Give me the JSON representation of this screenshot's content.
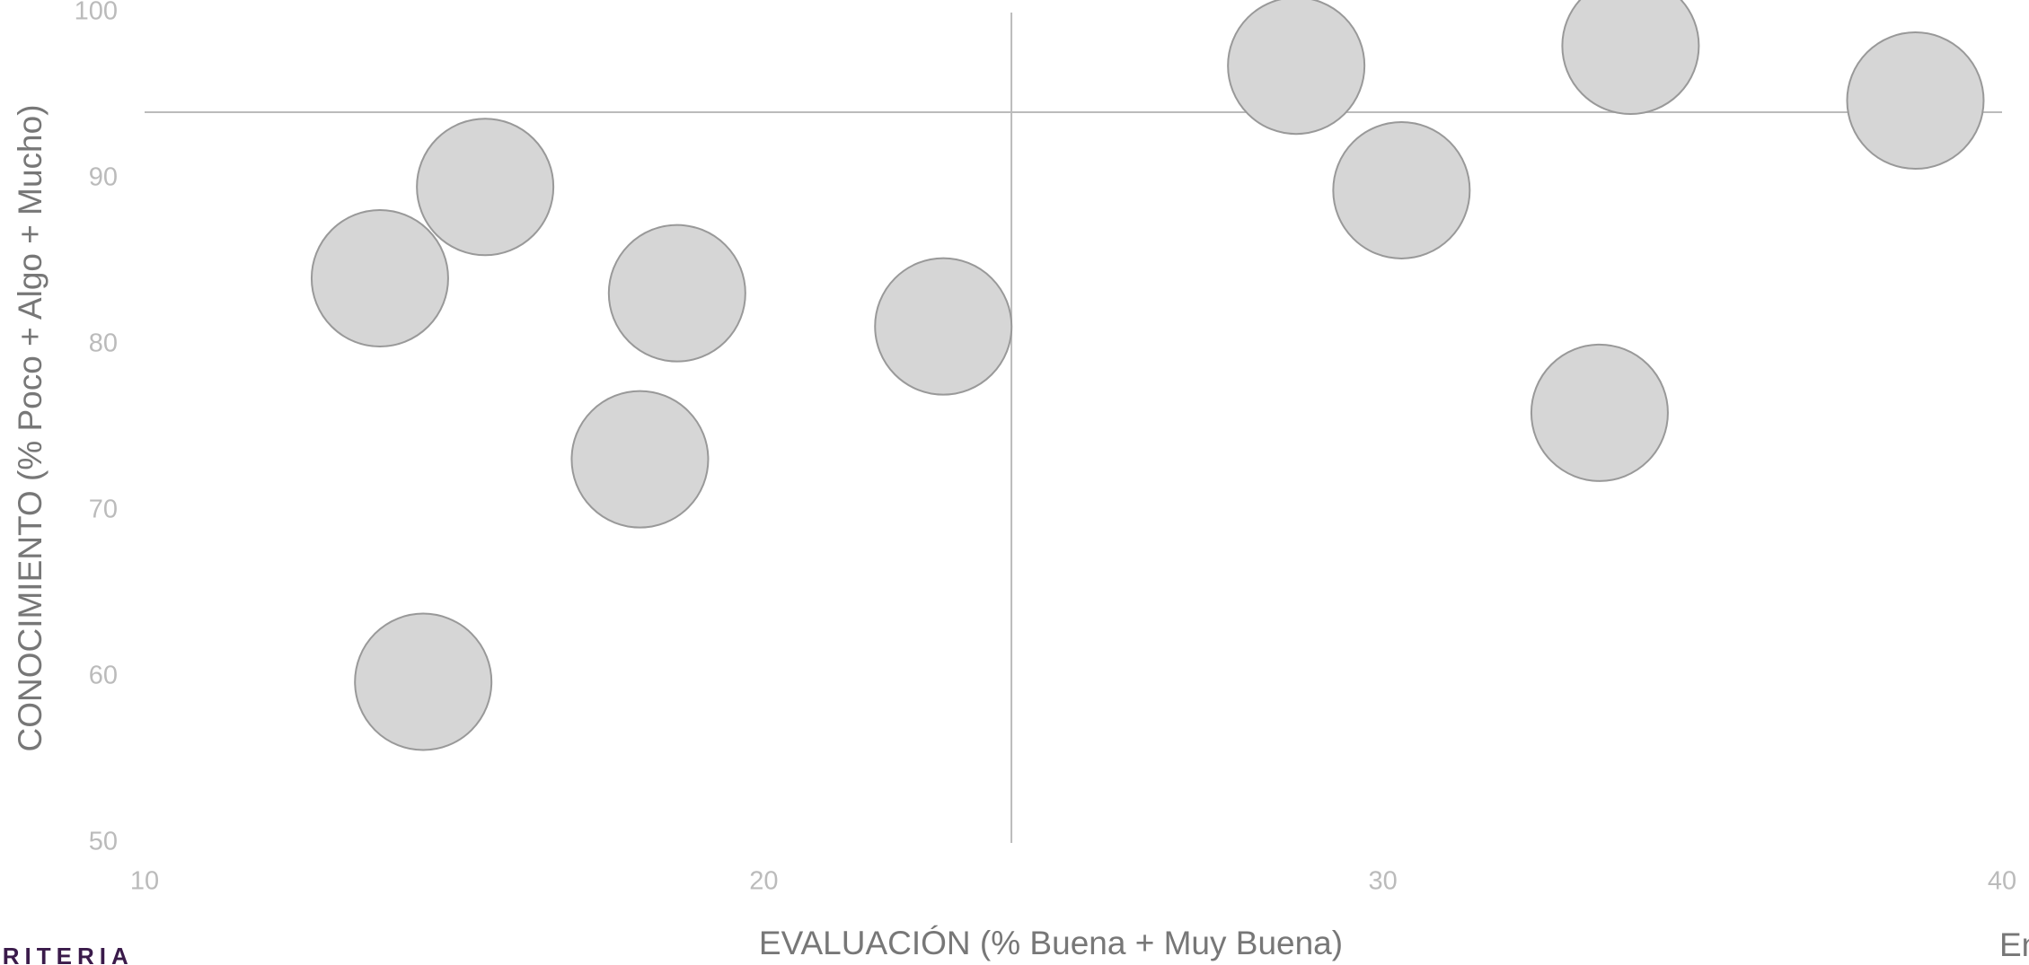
{
  "chart_data": {
    "type": "scatter",
    "xlabel": "EVALUACIÓN (% Buena + Muy Buena)",
    "ylabel": "CONOCIMIENTO (% Poco + Algo + Mucho)",
    "x": [
      28.6,
      34.0,
      38.6,
      15.5,
      30.3,
      13.8,
      18.6,
      22.9,
      33.5,
      18.0,
      14.5
    ],
    "values": [
      96.8,
      98.0,
      94.7,
      89.5,
      89.3,
      84.0,
      83.1,
      81.1,
      75.9,
      73.1,
      59.7
    ],
    "color": "#d6d6d6",
    "xlim": [
      10,
      40
    ],
    "xticks": [
      10,
      20,
      30,
      40
    ],
    "ylim": [
      50,
      100
    ],
    "yticks": [
      50,
      60,
      70,
      80,
      90,
      100
    ],
    "reference_x": 24.0,
    "reference_y": 94.0
  },
  "footer": {
    "brand": "CRITERIA",
    "next_label": "En"
  }
}
